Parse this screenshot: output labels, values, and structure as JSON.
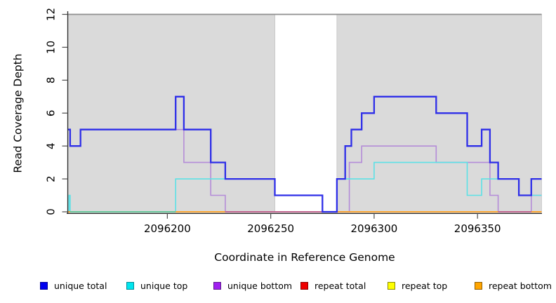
{
  "chart_data": {
    "type": "line",
    "step": true,
    "title": "",
    "xlabel": "Coordinate in Reference Genome",
    "ylabel": "Read Coverage Depth",
    "xlim": [
      2096152,
      2096381
    ],
    "ylim": [
      0,
      12
    ],
    "x_ticks": [
      "2096200",
      "2096250",
      "2096300",
      "2096350"
    ],
    "x_tick_values": [
      2096200,
      2096250,
      2096300,
      2096350
    ],
    "y_ticks": [
      "0",
      "2",
      "4",
      "6",
      "8",
      "10",
      "12"
    ],
    "y_tick_values": [
      0,
      2,
      4,
      6,
      8,
      10,
      12
    ],
    "grid": false,
    "plot_bg": "#ffffff",
    "background_regions": [
      {
        "name": "shaded-region-left",
        "x1": 2096152,
        "x2": 2096252,
        "color": "#dadada"
      },
      {
        "name": "uncovered-gap",
        "x1": 2096252,
        "x2": 2096282,
        "color": "#ffffff"
      },
      {
        "name": "shaded-region-right",
        "x1": 2096282,
        "x2": 2096381,
        "color": "#dadada"
      }
    ],
    "top_boundary": {
      "y": 12,
      "color": "#8f8f8f"
    },
    "series": [
      {
        "name": "unique bottom",
        "color": "#b48cd8",
        "width": 1.6,
        "end_x": 2096381,
        "points": [
          [
            2096158,
            5
          ],
          [
            2096208,
            3
          ],
          [
            2096221,
            1
          ],
          [
            2096228,
            0
          ],
          [
            2096288,
            3
          ],
          [
            2096294,
            4
          ],
          [
            2096330,
            3
          ],
          [
            2096356,
            1
          ],
          [
            2096360,
            0
          ],
          [
            2096376,
            1
          ]
        ]
      },
      {
        "name": "unique top",
        "color": "#5ce1e6",
        "width": 1.6,
        "end_x": 2096381,
        "points": [
          [
            2096152,
            0
          ],
          [
            2096152.4,
            1
          ],
          [
            2096153,
            0
          ],
          [
            2096204,
            2
          ],
          [
            2096252,
            1
          ],
          [
            2096275,
            0
          ],
          [
            2096282,
            2
          ],
          [
            2096300,
            3
          ],
          [
            2096345,
            1
          ],
          [
            2096352,
            2
          ],
          [
            2096370,
            1
          ]
        ]
      },
      {
        "name": "unique total",
        "color": "#2e2ee8",
        "width": 2.3,
        "end_x": 2096381,
        "points": [
          [
            2096152,
            5
          ],
          [
            2096153,
            4
          ],
          [
            2096158,
            5
          ],
          [
            2096204,
            7
          ],
          [
            2096208,
            5
          ],
          [
            2096221,
            3
          ],
          [
            2096228,
            2
          ],
          [
            2096252,
            1
          ],
          [
            2096275,
            0
          ],
          [
            2096282,
            2
          ],
          [
            2096286,
            4
          ],
          [
            2096289,
            5
          ],
          [
            2096294,
            6
          ],
          [
            2096300,
            7
          ],
          [
            2096330,
            6
          ],
          [
            2096345,
            4
          ],
          [
            2096352,
            5
          ],
          [
            2096356,
            3
          ],
          [
            2096360,
            2
          ],
          [
            2096370,
            1
          ],
          [
            2096376,
            2
          ]
        ]
      }
    ],
    "baseline_segments": [
      {
        "color": "#ff9e1b",
        "x1": 2096152,
        "x2": 2096153
      },
      {
        "color": "#62c493",
        "x1": 2096153,
        "x2": 2096204
      },
      {
        "color": "#ff9e1b",
        "x1": 2096204,
        "x2": 2096228
      },
      {
        "color": "#c05a85",
        "x1": 2096228,
        "x2": 2096282
      },
      {
        "color": "#ff9e1b",
        "x1": 2096282,
        "x2": 2096360
      },
      {
        "color": "#c05a85",
        "x1": 2096360,
        "x2": 2096376
      },
      {
        "color": "#ff9e1b",
        "x1": 2096376,
        "x2": 2096381
      }
    ],
    "legend": {
      "position": "bottom",
      "entries": [
        {
          "label": "unique total",
          "fill": "#0000ee",
          "border": "#00009a"
        },
        {
          "label": "unique top",
          "fill": "#00e5ee",
          "border": "#008b97"
        },
        {
          "label": "unique bottom",
          "fill": "#a020f0",
          "border": "#5f1a8b"
        },
        {
          "label": "repeat total",
          "fill": "#ee0000",
          "border": "#8b0000"
        },
        {
          "label": "repeat top",
          "fill": "#ffff00",
          "border": "#8b8b00"
        },
        {
          "label": "repeat bottom",
          "fill": "#ffa500",
          "border": "#925e00"
        }
      ]
    }
  }
}
